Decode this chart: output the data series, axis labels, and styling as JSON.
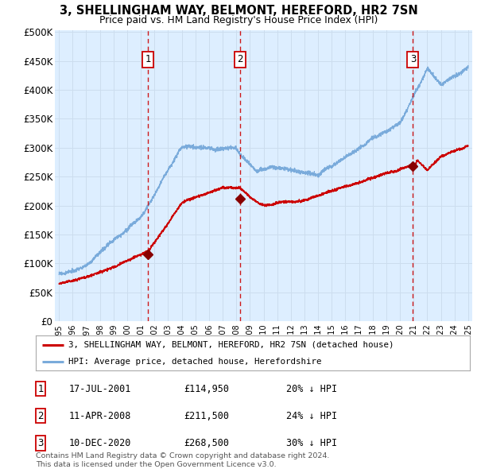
{
  "title_line1": "3, SHELLINGHAM WAY, BELMONT, HEREFORD, HR2 7SN",
  "title_line2": "Price paid vs. HM Land Registry's House Price Index (HPI)",
  "background_color": "#ffffff",
  "plot_bg_color": "#ddeeff",
  "grid_color": "#ccddee",
  "hpi_color": "#7aabdb",
  "price_color": "#cc0000",
  "sale_marker_color": "#880000",
  "dashed_line_color": "#cc0000",
  "x_start_year": 1995,
  "x_end_year": 2025,
  "y_max": 500000,
  "y_ticks": [
    0,
    50000,
    100000,
    150000,
    200000,
    250000,
    300000,
    350000,
    400000,
    450000,
    500000
  ],
  "sales": [
    {
      "date_decimal": 2001.54,
      "price": 114950,
      "label": "1",
      "date_str": "17-JUL-2001"
    },
    {
      "date_decimal": 2008.28,
      "price": 211500,
      "label": "2",
      "date_str": "11-APR-2008"
    },
    {
      "date_decimal": 2020.95,
      "price": 268500,
      "label": "3",
      "date_str": "10-DEC-2020"
    }
  ],
  "legend_entries": [
    {
      "color": "#cc0000",
      "label": "3, SHELLINGHAM WAY, BELMONT, HEREFORD, HR2 7SN (detached house)"
    },
    {
      "color": "#7aabdb",
      "label": "HPI: Average price, detached house, Herefordshire"
    }
  ],
  "table_rows": [
    {
      "num": "1",
      "date": "17-JUL-2001",
      "price": "£114,950",
      "change": "20% ↓ HPI"
    },
    {
      "num": "2",
      "date": "11-APR-2008",
      "price": "£211,500",
      "change": "24% ↓ HPI"
    },
    {
      "num": "3",
      "date": "10-DEC-2020",
      "price": "£268,500",
      "change": "30% ↓ HPI"
    }
  ],
  "footnote": "Contains HM Land Registry data © Crown copyright and database right 2024.\nThis data is licensed under the Open Government Licence v3.0."
}
